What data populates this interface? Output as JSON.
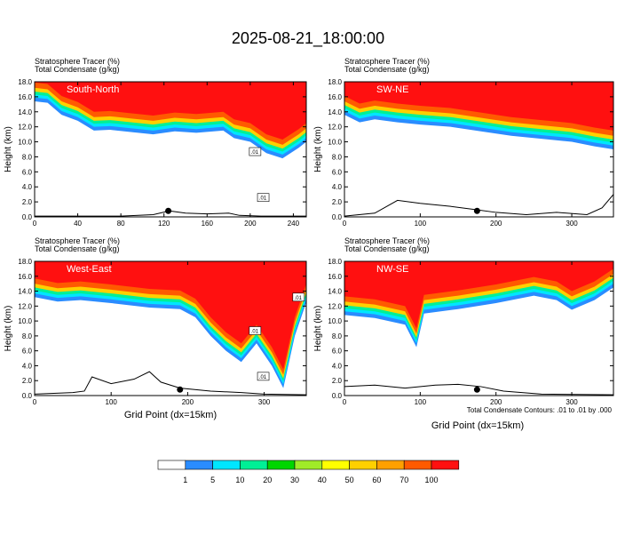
{
  "figure": {
    "title": "2025-08-21_18:00:00",
    "footnote": "Total Condensate Contours: .01 to .01 by .000",
    "xlabel": "Grid Point (dx=15km)"
  },
  "colorbar": {
    "labels": [
      "1",
      "5",
      "10",
      "20",
      "30",
      "40",
      "50",
      "60",
      "70",
      "100"
    ],
    "colors": [
      "#ffffff",
      "#2a8cff",
      "#00e6ff",
      "#00f096",
      "#00d600",
      "#a0eb28",
      "#ffff00",
      "#ffd000",
      "#ffa000",
      "#ff5a00",
      "#ff1010"
    ]
  },
  "chart_data": [
    {
      "type": "heatmap",
      "label": "South-North",
      "subtitle1": "Stratosphere Tracer   (%)",
      "subtitle2": "Total Condensate   (g/kg)",
      "ylabel": "Height (km)",
      "xlim": [
        0,
        252
      ],
      "ylim": [
        0,
        18
      ],
      "xticks": [
        0,
        40,
        80,
        120,
        160,
        200,
        240
      ],
      "yticks": [
        0.0,
        2.0,
        4.0,
        6.0,
        8.0,
        10.0,
        12.0,
        14.0,
        16.0,
        18.0
      ],
      "contour_labels": [
        ".01",
        ".01"
      ],
      "tropopause_km": [
        [
          0,
          15.4
        ],
        [
          12,
          15.2
        ],
        [
          25,
          13.6
        ],
        [
          40,
          12.8
        ],
        [
          55,
          11.5
        ],
        [
          70,
          11.6
        ],
        [
          90,
          11.3
        ],
        [
          110,
          11.0
        ],
        [
          130,
          11.4
        ],
        [
          150,
          11.2
        ],
        [
          175,
          11.5
        ],
        [
          185,
          10.5
        ],
        [
          200,
          10.0
        ],
        [
          215,
          8.5
        ],
        [
          230,
          7.8
        ],
        [
          245,
          9.2
        ],
        [
          252,
          10.0
        ]
      ],
      "terrain_km": [
        [
          0,
          0.1
        ],
        [
          80,
          0.1
        ],
        [
          110,
          0.3
        ],
        [
          125,
          0.8
        ],
        [
          140,
          0.5
        ],
        [
          160,
          0.4
        ],
        [
          180,
          0.5
        ],
        [
          190,
          0.2
        ],
        [
          210,
          0.1
        ],
        [
          252,
          0.1
        ]
      ],
      "marker_x": 124
    },
    {
      "type": "heatmap",
      "label": "SW-NE",
      "subtitle1": "Stratosphere Tracer   (%)",
      "subtitle2": "Total Condensate   (g/kg)",
      "ylabel": "Height (km)",
      "xlim": [
        0,
        355
      ],
      "ylim": [
        0,
        18
      ],
      "xticks": [
        0,
        100,
        200,
        300
      ],
      "yticks": [
        0.0,
        2.0,
        4.0,
        6.0,
        8.0,
        10.0,
        12.0,
        14.0,
        16.0,
        18.0
      ],
      "contour_labels": [],
      "tropopause_km": [
        [
          0,
          13.6
        ],
        [
          20,
          12.6
        ],
        [
          40,
          13.0
        ],
        [
          70,
          12.6
        ],
        [
          100,
          12.3
        ],
        [
          140,
          12.0
        ],
        [
          180,
          11.4
        ],
        [
          220,
          10.8
        ],
        [
          260,
          10.4
        ],
        [
          300,
          10.0
        ],
        [
          330,
          9.4
        ],
        [
          355,
          9.0
        ]
      ],
      "terrain_km": [
        [
          0,
          0.1
        ],
        [
          40,
          0.5
        ],
        [
          70,
          2.2
        ],
        [
          100,
          1.8
        ],
        [
          140,
          1.4
        ],
        [
          170,
          1.0
        ],
        [
          200,
          0.6
        ],
        [
          240,
          0.3
        ],
        [
          280,
          0.6
        ],
        [
          320,
          0.3
        ],
        [
          340,
          1.2
        ],
        [
          355,
          3.0
        ]
      ],
      "marker_x": 175
    },
    {
      "type": "heatmap",
      "label": "West-East",
      "subtitle1": "Stratosphere Tracer   (%)",
      "subtitle2": "Total Condensate   (g/kg)",
      "ylabel": "Height (km)",
      "xlim": [
        0,
        355
      ],
      "ylim": [
        0,
        18
      ],
      "xticks": [
        0,
        100,
        200,
        300
      ],
      "yticks": [
        0.0,
        2.0,
        4.0,
        6.0,
        8.0,
        10.0,
        12.0,
        14.0,
        16.0,
        18.0
      ],
      "contour_labels": [
        ".01",
        ".01",
        ".01"
      ],
      "tropopause_km": [
        [
          0,
          13.2
        ],
        [
          30,
          12.6
        ],
        [
          60,
          12.8
        ],
        [
          100,
          12.4
        ],
        [
          150,
          11.8
        ],
        [
          190,
          11.6
        ],
        [
          210,
          10.5
        ],
        [
          230,
          8.0
        ],
        [
          250,
          6.0
        ],
        [
          270,
          4.5
        ],
        [
          290,
          7.0
        ],
        [
          310,
          4.0
        ],
        [
          325,
          1.0
        ],
        [
          340,
          8.0
        ],
        [
          355,
          12.5
        ]
      ],
      "terrain_km": [
        [
          0,
          0.2
        ],
        [
          50,
          0.4
        ],
        [
          65,
          0.6
        ],
        [
          75,
          2.5
        ],
        [
          100,
          1.6
        ],
        [
          130,
          2.2
        ],
        [
          150,
          3.2
        ],
        [
          165,
          1.8
        ],
        [
          190,
          1.0
        ],
        [
          230,
          0.6
        ],
        [
          270,
          0.4
        ],
        [
          300,
          0.2
        ],
        [
          355,
          0.1
        ]
      ],
      "marker_x": 190
    },
    {
      "type": "heatmap",
      "label": "NW-SE",
      "subtitle1": "Stratosphere Tracer   (%)",
      "subtitle2": "Total Condensate   (g/kg)",
      "ylabel": "Height (km)",
      "xlim": [
        0,
        355
      ],
      "ylim": [
        0,
        18
      ],
      "xticks": [
        0,
        100,
        200,
        300
      ],
      "yticks": [
        0.0,
        2.0,
        4.0,
        6.0,
        8.0,
        10.0,
        12.0,
        14.0,
        16.0,
        18.0
      ],
      "contour_labels": [],
      "tropopause_km": [
        [
          0,
          10.8
        ],
        [
          40,
          10.4
        ],
        [
          80,
          9.5
        ],
        [
          95,
          6.5
        ],
        [
          105,
          11.0
        ],
        [
          150,
          11.6
        ],
        [
          200,
          12.4
        ],
        [
          250,
          13.4
        ],
        [
          280,
          12.8
        ],
        [
          300,
          11.5
        ],
        [
          330,
          12.8
        ],
        [
          355,
          14.5
        ]
      ],
      "terrain_km": [
        [
          0,
          1.2
        ],
        [
          40,
          1.4
        ],
        [
          80,
          1.0
        ],
        [
          120,
          1.4
        ],
        [
          150,
          1.5
        ],
        [
          180,
          1.2
        ],
        [
          210,
          0.6
        ],
        [
          260,
          0.2
        ],
        [
          355,
          0.1
        ]
      ],
      "marker_x": 175
    }
  ]
}
